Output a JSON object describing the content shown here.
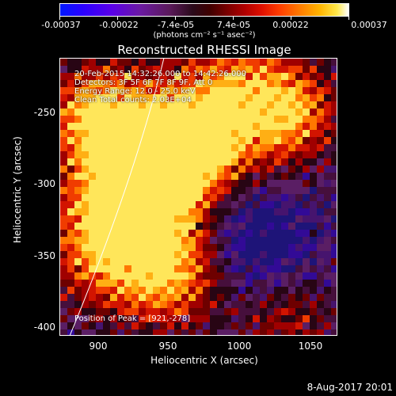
{
  "colorbar": {
    "tick_labels": [
      "-0.00037",
      "-0.00022",
      "-7.4e-05",
      "7.4e-05",
      "0.00022",
      "0.00037"
    ],
    "units": "(photons cm⁻² s⁻¹ asec⁻²)"
  },
  "image": {
    "title": "Reconstructed RHESSI Image",
    "info_lines": [
      "20-Feb-2015 14:32:26.000 to 14:42:26.000",
      "Detectors: 3F 5F 6F 7F 8F 9F, Att 0",
      "Energy Range: 12.0 - 25.0 keV",
      "Clean     Total counts: 2.03E+04"
    ],
    "peak_text": "Position of Peak = [921,-278]",
    "xlabel": "Heliocentric X (arcsec)",
    "ylabel": "Heliocentric Y (arcsec)",
    "x_ticks": [
      "900",
      "950",
      "1000",
      "1050"
    ],
    "y_ticks": [
      "-250",
      "-300",
      "-350",
      "-400"
    ],
    "xlim": [
      873,
      1067
    ],
    "ylim": [
      -404,
      -210
    ]
  },
  "timestamp": "8-Aug-2017 20:01",
  "colors": {
    "background": "#000000",
    "foreground": "#ffffff"
  }
}
